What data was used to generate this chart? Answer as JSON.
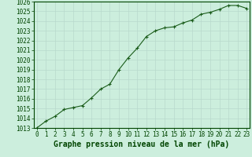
{
  "x": [
    0,
    1,
    2,
    3,
    4,
    5,
    6,
    7,
    8,
    9,
    10,
    11,
    12,
    13,
    14,
    15,
    16,
    17,
    18,
    19,
    20,
    21,
    22,
    23
  ],
  "y": [
    1013.0,
    1013.7,
    1014.2,
    1014.9,
    1015.1,
    1015.3,
    1016.1,
    1017.0,
    1017.5,
    1019.0,
    1020.2,
    1021.2,
    1022.4,
    1023.0,
    1023.3,
    1023.4,
    1023.8,
    1024.1,
    1024.7,
    1024.9,
    1025.2,
    1025.6,
    1025.6,
    1025.3
  ],
  "ylim": [
    1013,
    1026
  ],
  "xlim_min": -0.3,
  "xlim_max": 23.3,
  "yticks": [
    1013,
    1014,
    1015,
    1016,
    1017,
    1018,
    1019,
    1020,
    1021,
    1022,
    1023,
    1024,
    1025,
    1026
  ],
  "xticks": [
    0,
    1,
    2,
    3,
    4,
    5,
    6,
    7,
    8,
    9,
    10,
    11,
    12,
    13,
    14,
    15,
    16,
    17,
    18,
    19,
    20,
    21,
    22,
    23
  ],
  "line_color": "#1a5c1a",
  "marker_color": "#1a5c1a",
  "bg_color": "#cceedd",
  "grid_color": "#b8d9cc",
  "xlabel": "Graphe pression niveau de la mer (hPa)",
  "xlabel_color": "#004400",
  "tick_color": "#004400",
  "tick_fontsize": 5.5,
  "xlabel_fontsize": 7.0
}
